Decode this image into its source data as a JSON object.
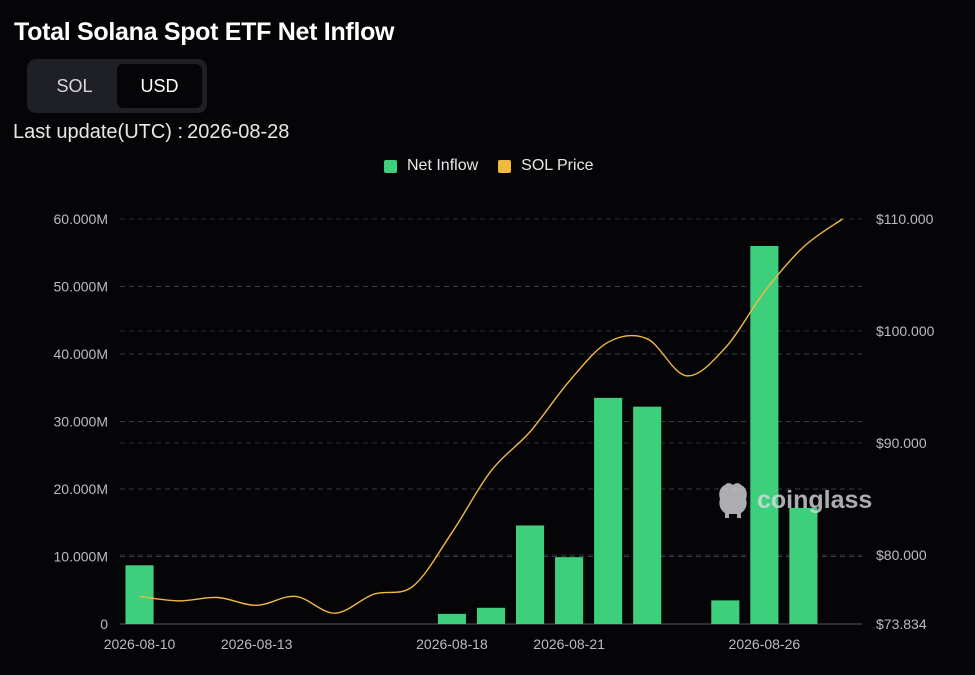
{
  "header": {
    "title": "Total Solana Spot ETF Net Inflow",
    "toggle": [
      {
        "label": "SOL",
        "active": false
      },
      {
        "label": "USD",
        "active": true
      }
    ],
    "last_update_label": "Last update(UTC) :",
    "last_update_value": "2026-08-28"
  },
  "watermark": {
    "text": "coinglass",
    "icon": "coinglass-logo-icon"
  },
  "colors": {
    "net_inflow": "#3ecf7d",
    "sol_price": "#f0b93f",
    "background": "#050508"
  },
  "chart_data": {
    "type": "bar",
    "dates": [
      "2026-08-10",
      "2026-08-11",
      "2026-08-12",
      "2026-08-13",
      "2026-08-14",
      "2026-08-15",
      "2026-08-16",
      "2026-08-17",
      "2026-08-18",
      "2026-08-19",
      "2026-08-20",
      "2026-08-21",
      "2026-08-22",
      "2026-08-23",
      "2026-08-24",
      "2026-08-25",
      "2026-08-26",
      "2026-08-27",
      "2026-08-28"
    ],
    "x_tick_labels": [
      "2026-08-10",
      "2026-08-13",
      "2026-08-18",
      "2026-08-21",
      "2026-08-26"
    ],
    "series": [
      {
        "name": "Net Inflow",
        "type": "bar",
        "axis": "left",
        "values": [
          8.7,
          0,
          0,
          0,
          0,
          0,
          0,
          0,
          1.5,
          2.4,
          14.6,
          9.9,
          33.5,
          32.2,
          0,
          3.5,
          56.0,
          17.2,
          0
        ]
      },
      {
        "name": "SOL Price",
        "type": "line",
        "axis": "right",
        "values": [
          76.3,
          75.9,
          76.2,
          75.5,
          76.3,
          74.8,
          76.5,
          77.2,
          82.0,
          87.5,
          91.0,
          95.5,
          99.0,
          99.3,
          96.0,
          98.5,
          103.5,
          107.5,
          110.0
        ]
      }
    ],
    "y_left": {
      "min": 0,
      "max": 60,
      "unit": "M",
      "ticks": [
        0,
        10,
        20,
        30,
        40,
        50,
        60
      ],
      "tick_labels": [
        "0",
        "10.000M",
        "20.000M",
        "30.000M",
        "40.000M",
        "50.000M",
        "60.000M"
      ]
    },
    "y_right": {
      "min": 73.834,
      "max": 110,
      "ticks": [
        73.834,
        80,
        90,
        100,
        110
      ],
      "tick_labels": [
        "$73.834",
        "$80.000",
        "$90.000",
        "$100.000",
        "$110.000"
      ]
    },
    "grid": true,
    "legend_position": "top-center"
  }
}
